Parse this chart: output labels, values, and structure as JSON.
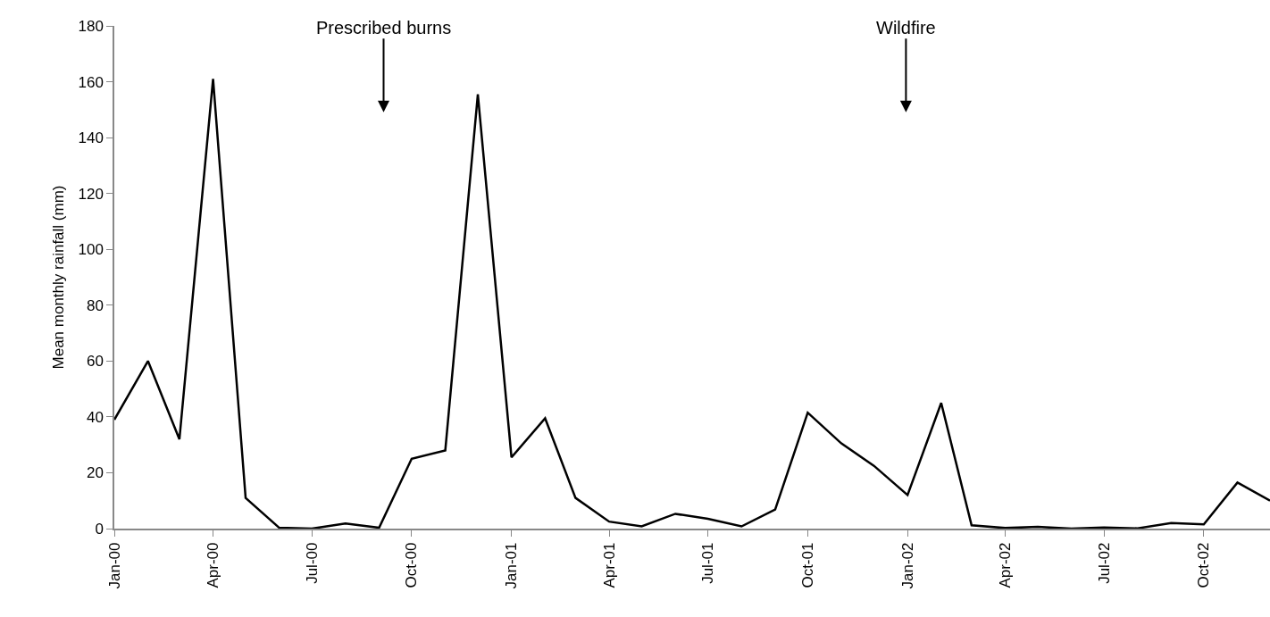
{
  "chart_data": {
    "type": "line",
    "ylabel": "Mean monthly rainfall (mm)",
    "x": [
      "2000-01",
      "2000-02",
      "2000-03",
      "2000-04",
      "2000-05",
      "2000-06",
      "2000-07",
      "2000-08",
      "2000-09",
      "2000-10",
      "2000-11",
      "2000-12",
      "2001-01",
      "2001-02",
      "2001-03",
      "2001-04",
      "2001-05",
      "2001-06",
      "2001-07",
      "2001-08",
      "2001-09",
      "2001-10",
      "2001-11",
      "2001-12",
      "2002-01",
      "2002-02",
      "2002-03",
      "2002-04",
      "2002-05",
      "2002-06",
      "2002-07",
      "2002-08",
      "2002-09",
      "2002-10",
      "2002-11",
      "2002-12"
    ],
    "series": [
      {
        "color": "#000000",
        "values": [
          39,
          60,
          32,
          161,
          11,
          0.3,
          0,
          1.8,
          0.3,
          25,
          28,
          155.5,
          25.5,
          39.5,
          11,
          2.5,
          0.8,
          5.3,
          3.5,
          0.8,
          6.8,
          41.5,
          30.5,
          22.5,
          12,
          45,
          1.2,
          0.2,
          0.6,
          0,
          0.4,
          0.1,
          2,
          1.5,
          16.5,
          10
        ]
      }
    ],
    "xlim": [
      "2000-01",
      "2002-12"
    ],
    "xticks": [
      {
        "value": "2000-01",
        "label": "Jan-00"
      },
      {
        "value": "2000-04",
        "label": "Apr-00"
      },
      {
        "value": "2000-07",
        "label": "Jul-00"
      },
      {
        "value": "2000-10",
        "label": "Oct-00"
      },
      {
        "value": "2001-01",
        "label": "Jan-01"
      },
      {
        "value": "2001-04",
        "label": "Apr-01"
      },
      {
        "value": "2001-07",
        "label": "Jul-01"
      },
      {
        "value": "2001-10",
        "label": "Oct-01"
      },
      {
        "value": "2002-01",
        "label": "Jan-02"
      },
      {
        "value": "2002-04",
        "label": "Apr-02"
      },
      {
        "value": "2002-07",
        "label": "Jul-02"
      },
      {
        "value": "2002-10",
        "label": "Oct-02"
      }
    ],
    "ylim": [
      0,
      180
    ],
    "yticks": [
      0,
      20,
      40,
      60,
      80,
      100,
      120,
      140,
      160,
      180
    ],
    "annotations": [
      "Prescribed burns",
      "Wildfire"
    ],
    "grid": false,
    "marker": "none",
    "line_style": "solid"
  }
}
